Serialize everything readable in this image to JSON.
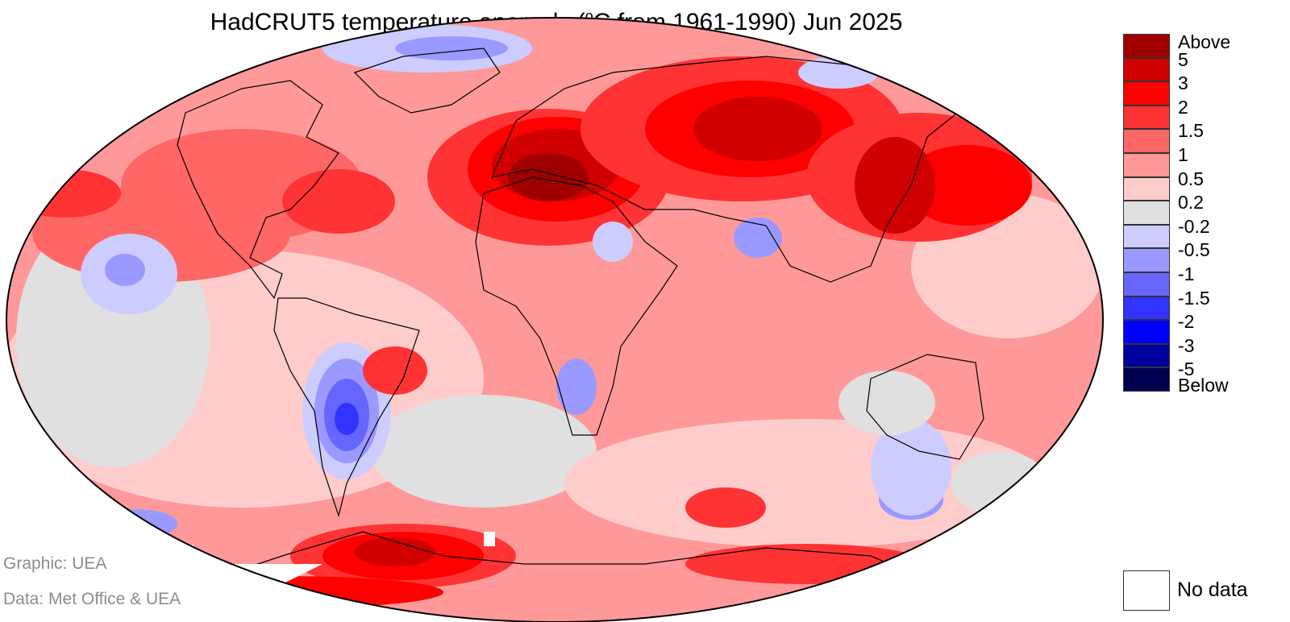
{
  "title": {
    "prefix": "HadCRUT5 temperature anomaly (",
    "superscript": "o",
    "suffix": "C from 1961-1990) Jun 2025"
  },
  "credits": {
    "graphic": "Graphic: UEA",
    "data": "Data: Met Office & UEA"
  },
  "legend": {
    "top_label": "Above",
    "bottom_label": "Below",
    "boundaries": [
      "5",
      "3",
      "2",
      "1.5",
      "1",
      "0.5",
      "0.2",
      "-0.2",
      "-0.5",
      "-1",
      "-1.5",
      "-2",
      "-3",
      "-5"
    ],
    "colors": [
      "#a00000",
      "#d00000",
      "#ff0000",
      "#ff3333",
      "#ff6666",
      "#ff9999",
      "#ffcccc",
      "#e0e0e0",
      "#ccccff",
      "#9999ff",
      "#6666ff",
      "#3333ff",
      "#0000ff",
      "#0000a0",
      "#000050"
    ],
    "no_data_label": "No data",
    "no_data_color": "#ffffff"
  },
  "map": {
    "projection": "Robinson",
    "variable": "temperature anomaly",
    "units": "°C",
    "baseline": "1961-1990",
    "period": "Jun 2025"
  }
}
